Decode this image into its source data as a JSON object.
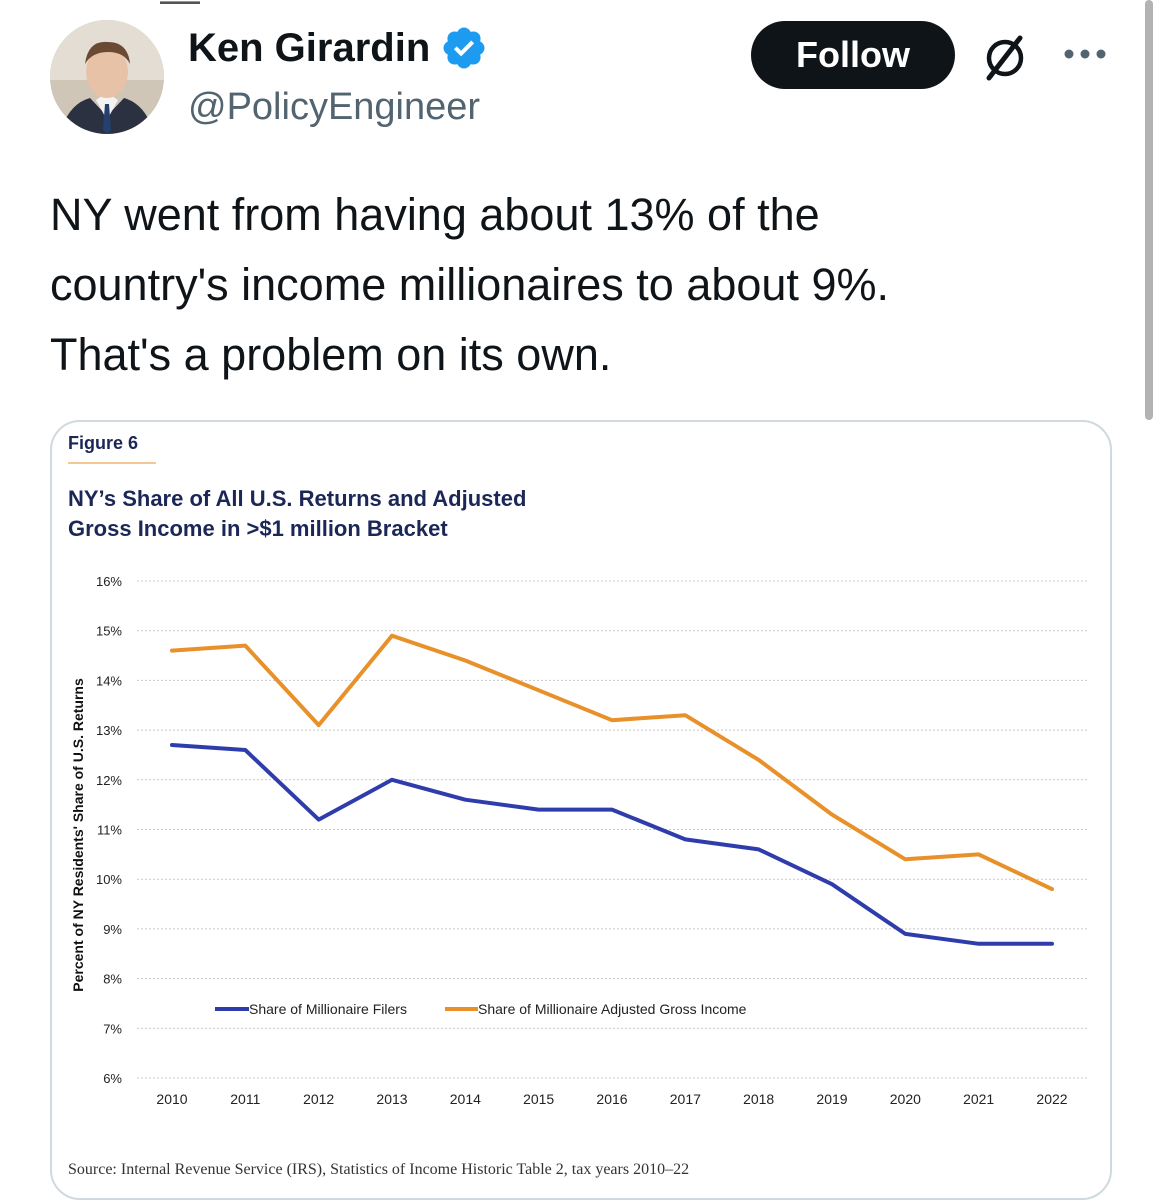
{
  "tweet": {
    "author_name": "Ken Girardin",
    "handle": "@PolicyEngineer",
    "follow_label": "Follow",
    "text_lines": [
      "NY went from having about 13% of the",
      "country's income millionaires to about 9%.",
      "That's a problem on its own."
    ]
  },
  "icons": {
    "verified": "verified-badge-icon",
    "grok": "grok-slash-icon",
    "more": "more-horizontal-icon"
  },
  "colors": {
    "follow_bg": "#0f1419",
    "verified": "#1d9bf0",
    "series_filers": "#2f3dac",
    "series_agi": "#e8912a",
    "chart_title": "#1b2756"
  },
  "chart_data": {
    "type": "line",
    "figure_label": "Figure 6",
    "title_lines": [
      "NY’s Share of All U.S. Returns and Adjusted",
      "Gross Income in >$1 million Bracket"
    ],
    "ylabel": "Percent of NY Residents' Share of U.S. Returns",
    "xlabel": "",
    "x": [
      2010,
      2011,
      2012,
      2013,
      2014,
      2015,
      2016,
      2017,
      2018,
      2019,
      2020,
      2021,
      2022
    ],
    "ylim": [
      6,
      16
    ],
    "yticks": [
      "6%",
      "7%",
      "8%",
      "9%",
      "10%",
      "11%",
      "12%",
      "13%",
      "14%",
      "15%",
      "16%"
    ],
    "grid": true,
    "legend_position": "bottom-left",
    "series": [
      {
        "name": "Share of Millionaire Filers",
        "color": "#2f3dac",
        "values": [
          12.7,
          12.6,
          11.2,
          12.0,
          11.6,
          11.4,
          11.4,
          10.8,
          10.6,
          9.9,
          8.9,
          8.7,
          8.7
        ]
      },
      {
        "name": "Share of Millionaire Adjusted Gross Income",
        "color": "#e8912a",
        "values": [
          14.6,
          14.7,
          13.1,
          14.9,
          14.4,
          13.8,
          13.2,
          13.3,
          12.4,
          11.3,
          10.4,
          10.5,
          9.8
        ]
      }
    ],
    "source": "Source: Internal Revenue Service (IRS), Statistics of Income Historic Table 2, tax years 2010–22"
  }
}
